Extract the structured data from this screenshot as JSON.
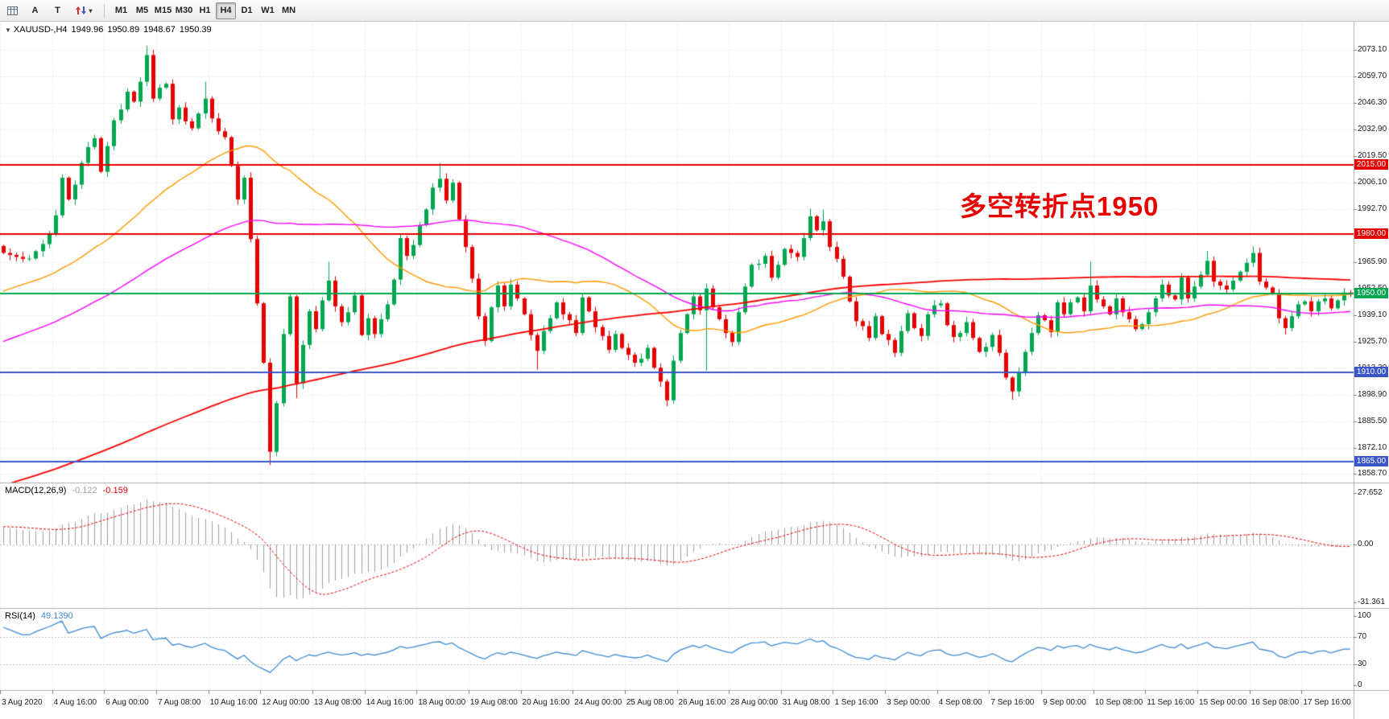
{
  "colors": {
    "up": "#00a651",
    "down": "#e60000",
    "ma_fast": "#ff9900",
    "ma_mid": "#ff00ff",
    "ma_slow": "#ff0000",
    "grid": "#e3e3e3",
    "separator": "#b0b0b0",
    "macd_bar": "#9e9e9e",
    "macd_signal": "#e60000",
    "macd_zero": "#c0c0c0",
    "rsi_line": "#3d8bd4",
    "rsi_level": "#c0c0c0",
    "tick": "#808080"
  },
  "toolbar": {
    "text_tool_label": "A",
    "label_tool_label": "T",
    "timeframes": [
      "M1",
      "M5",
      "M15",
      "M30",
      "H1",
      "H4",
      "D1",
      "W1",
      "MN"
    ],
    "active_timeframe": "H4"
  },
  "chart": {
    "symbol_ohlc": {
      "symbol": "XAUUSD-,H4",
      "open": "1949.96",
      "high": "1950.89",
      "low": "1948.67",
      "close": "1950.39"
    },
    "annotation": {
      "text": "多空转折点1950",
      "color": "#e60000"
    },
    "price_axis": {
      "labels": [
        "2073.10",
        "2059.70",
        "2046.30",
        "2032.90",
        "2019.50",
        "2006.10",
        "1992.70",
        "1979.30",
        "1965.90",
        "1952.50",
        "1939.10",
        "1925.70",
        "1912.30",
        "1898.90",
        "1885.50",
        "1872.10",
        "1858.70"
      ],
      "values": [
        2073.1,
        2059.7,
        2046.3,
        2032.9,
        2019.5,
        2006.1,
        1992.7,
        1979.3,
        1965.9,
        1952.5,
        1939.1,
        1925.7,
        1912.3,
        1898.9,
        1885.5,
        1872.1,
        1858.7
      ]
    },
    "levels": [
      {
        "price": 2015.0,
        "label": "2015.00",
        "color": "#e60000"
      },
      {
        "price": 1980.0,
        "label": "1980.00",
        "color": "#e60000"
      },
      {
        "price": 1950.0,
        "label": "1950.00",
        "color": "#00a651"
      },
      {
        "price": 1910.0,
        "label": "1910.00",
        "color": "#3a56c8"
      },
      {
        "price": 1865.0,
        "label": "1865.00",
        "color": "#3a56c8"
      }
    ],
    "time_axis": [
      "3 Aug 2020",
      "4 Aug 16:00",
      "6 Aug 00:00",
      "7 Aug 08:00",
      "10 Aug 16:00",
      "12 Aug 00:00",
      "13 Aug 08:00",
      "14 Aug 16:00",
      "18 Aug 00:00",
      "19 Aug 08:00",
      "20 Aug 16:00",
      "24 Aug 00:00",
      "25 Aug 08:00",
      "26 Aug 16:00",
      "28 Aug 00:00",
      "31 Aug 08:00",
      "1 Sep 16:00",
      "3 Sep 00:00",
      "4 Sep 08:00",
      "7 Sep 16:00",
      "9 Sep 00:00",
      "10 Sep 08:00",
      "11 Sep 16:00",
      "15 Sep 00:00",
      "16 Sep 08:00",
      "17 Sep 16:00"
    ]
  },
  "macd": {
    "label": "MACD(12,26,9)",
    "value_main": "-0.122",
    "value_signal": "-0.159",
    "axis_labels": [
      "27.652",
      "0.00",
      "-31.361"
    ],
    "axis_values": [
      27.652,
      0,
      -31.361
    ]
  },
  "rsi": {
    "label": "RSI(14)",
    "value": "49.1390",
    "axis_labels": [
      "100",
      "70",
      "30",
      "0"
    ],
    "axis_values": [
      100,
      70,
      30,
      0
    ],
    "levels": [
      70,
      30
    ]
  },
  "chart_data": {
    "type": "candlestick",
    "symbol": "XAUUSD-",
    "timeframe": "H4",
    "candles": 208,
    "first_open": 1974,
    "price_range": [
      1855,
      2086
    ],
    "close_waypoints": [
      [
        0,
        1972
      ],
      [
        3,
        1966
      ],
      [
        6,
        1974
      ],
      [
        8,
        1990
      ],
      [
        9,
        2008
      ],
      [
        10,
        1996
      ],
      [
        12,
        2016
      ],
      [
        14,
        2030
      ],
      [
        15,
        2012
      ],
      [
        17,
        2036
      ],
      [
        19,
        2052
      ],
      [
        20,
        2046
      ],
      [
        22,
        2071
      ],
      [
        23,
        2048
      ],
      [
        25,
        2057
      ],
      [
        26,
        2038
      ],
      [
        27,
        2043
      ],
      [
        29,
        2034
      ],
      [
        31,
        2047
      ],
      [
        33,
        2032
      ],
      [
        34,
        2028
      ],
      [
        35,
        2016
      ],
      [
        36,
        1998
      ],
      [
        37,
        2008
      ],
      [
        38,
        1976
      ],
      [
        39,
        1946
      ],
      [
        40,
        1915
      ],
      [
        41,
        1869
      ],
      [
        42,
        1896
      ],
      [
        43,
        1930
      ],
      [
        44,
        1948
      ],
      [
        45,
        1903
      ],
      [
        46,
        1925
      ],
      [
        47,
        1941
      ],
      [
        48,
        1931
      ],
      [
        49,
        1948
      ],
      [
        50,
        1957
      ],
      [
        51,
        1943
      ],
      [
        52,
        1934
      ],
      [
        54,
        1949
      ],
      [
        55,
        1928
      ],
      [
        56,
        1939
      ],
      [
        57,
        1930
      ],
      [
        59,
        1943
      ],
      [
        60,
        1958
      ],
      [
        61,
        1978
      ],
      [
        62,
        1968
      ],
      [
        63,
        1976
      ],
      [
        64,
        1985
      ],
      [
        65,
        1992
      ],
      [
        66,
        2002
      ],
      [
        67,
        2009
      ],
      [
        68,
        1997
      ],
      [
        69,
        2005
      ],
      [
        70,
        1989
      ],
      [
        71,
        1974
      ],
      [
        72,
        1957
      ],
      [
        73,
        1937
      ],
      [
        74,
        1927
      ],
      [
        75,
        1943
      ],
      [
        76,
        1953
      ],
      [
        77,
        1945
      ],
      [
        78,
        1955
      ],
      [
        79,
        1947
      ],
      [
        80,
        1938
      ],
      [
        81,
        1930
      ],
      [
        82,
        1921
      ],
      [
        84,
        1939
      ],
      [
        85,
        1946
      ],
      [
        86,
        1939
      ],
      [
        88,
        1931
      ],
      [
        89,
        1948
      ],
      [
        90,
        1940
      ],
      [
        92,
        1929
      ],
      [
        93,
        1921
      ],
      [
        94,
        1928
      ],
      [
        96,
        1919
      ],
      [
        97,
        1914
      ],
      [
        99,
        1923
      ],
      [
        100,
        1912
      ],
      [
        101,
        1904
      ],
      [
        102,
        1897
      ],
      [
        103,
        1916
      ],
      [
        104,
        1929
      ],
      [
        105,
        1941
      ],
      [
        106,
        1949
      ],
      [
        107,
        1941
      ],
      [
        108,
        1951
      ],
      [
        110,
        1937
      ],
      [
        111,
        1929
      ],
      [
        112,
        1927
      ],
      [
        113,
        1941
      ],
      [
        114,
        1953
      ],
      [
        115,
        1963
      ],
      [
        117,
        1969
      ],
      [
        118,
        1957
      ],
      [
        119,
        1966
      ],
      [
        120,
        1973
      ],
      [
        122,
        1967
      ],
      [
        123,
        1979
      ],
      [
        124,
        1989
      ],
      [
        125,
        1981
      ],
      [
        126,
        1988
      ],
      [
        127,
        1974
      ],
      [
        128,
        1967
      ],
      [
        129,
        1957
      ],
      [
        130,
        1947
      ],
      [
        131,
        1936
      ],
      [
        133,
        1929
      ],
      [
        134,
        1939
      ],
      [
        135,
        1929
      ],
      [
        137,
        1921
      ],
      [
        138,
        1931
      ],
      [
        139,
        1939
      ],
      [
        141,
        1929
      ],
      [
        142,
        1939
      ],
      [
        144,
        1946
      ],
      [
        145,
        1934
      ],
      [
        146,
        1927
      ],
      [
        148,
        1936
      ],
      [
        149,
        1927
      ],
      [
        150,
        1919
      ],
      [
        152,
        1929
      ],
      [
        153,
        1919
      ],
      [
        154,
        1909
      ],
      [
        155,
        1901
      ],
      [
        157,
        1919
      ],
      [
        158,
        1931
      ],
      [
        159,
        1939
      ],
      [
        161,
        1932
      ],
      [
        162,
        1946
      ],
      [
        163,
        1939
      ],
      [
        165,
        1949
      ],
      [
        166,
        1941
      ],
      [
        167,
        1953
      ],
      [
        169,
        1944
      ],
      [
        170,
        1939
      ],
      [
        171,
        1946
      ],
      [
        173,
        1937
      ],
      [
        174,
        1931
      ],
      [
        176,
        1941
      ],
      [
        177,
        1947
      ],
      [
        178,
        1953
      ],
      [
        180,
        1947
      ],
      [
        181,
        1957
      ],
      [
        182,
        1949
      ],
      [
        184,
        1959
      ],
      [
        185,
        1965
      ],
      [
        186,
        1957
      ],
      [
        188,
        1951
      ],
      [
        189,
        1958
      ],
      [
        191,
        1965
      ],
      [
        192,
        1969
      ],
      [
        193,
        1957
      ],
      [
        195,
        1949
      ],
      [
        196,
        1939
      ],
      [
        197,
        1933
      ],
      [
        199,
        1943
      ],
      [
        200,
        1947
      ],
      [
        201,
        1941
      ],
      [
        203,
        1949
      ],
      [
        204,
        1943
      ],
      [
        206,
        1949
      ],
      [
        207,
        1950.4
      ]
    ],
    "wick_overrides": {
      "22": [
        "h",
        2075.2
      ],
      "31": [
        "h",
        2057
      ],
      "41": [
        "l",
        1863.3
      ],
      "45": [
        "l",
        1897
      ],
      "50": [
        "h",
        1966
      ],
      "67": [
        "h",
        2015.9
      ],
      "74": [
        "l",
        1923.5
      ],
      "82": [
        "l",
        1911.5
      ],
      "102": [
        "l",
        1893
      ],
      "108": [
        "l",
        1911
      ],
      "124": [
        "h",
        1992.9
      ],
      "126": [
        "h",
        1992.3
      ],
      "155": [
        "l",
        1896.2
      ],
      "167": [
        "h",
        1966
      ],
      "185": [
        "h",
        1971.5
      ],
      "192": [
        "h",
        1973.8
      ],
      "197": [
        "l",
        1929.3
      ]
    },
    "moving_averages": [
      {
        "name": "sma-34",
        "period": 34,
        "color": "#ff9900"
      },
      {
        "name": "sma-72",
        "period": 72,
        "color": "#ff00ff"
      },
      {
        "name": "sma-200",
        "period": 200,
        "color": "#ff0000"
      }
    ],
    "pre_history": {
      "bars": 200,
      "start": 1762,
      "end": 1973,
      "power": 1.35
    }
  }
}
